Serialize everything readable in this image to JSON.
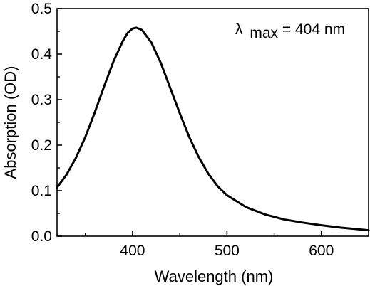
{
  "chart_data": {
    "type": "line",
    "xlabel": "Wavelength (nm)",
    "ylabel": "Absorption (OD)",
    "xlim": [
      320,
      650
    ],
    "ylim": [
      0.0,
      0.5
    ],
    "xticks": [
      400,
      500,
      600
    ],
    "xtick_labels": [
      "400",
      "500",
      "600"
    ],
    "yticks": [
      0.0,
      0.1,
      0.2,
      0.3,
      0.4,
      0.5
    ],
    "ytick_labels": [
      "0.0",
      "0.1",
      "0.2",
      "0.3",
      "0.4",
      "0.5"
    ],
    "grid": false,
    "annotation": {
      "symbol": "λ",
      "subscript": "max",
      "text": "= 404 nm"
    },
    "series": [
      {
        "color": "#000000",
        "x": [
          320,
          330,
          340,
          350,
          360,
          370,
          380,
          390,
          395,
          400,
          404,
          410,
          420,
          430,
          440,
          450,
          460,
          470,
          480,
          490,
          500,
          520,
          540,
          560,
          580,
          600,
          620,
          640,
          650
        ],
        "y": [
          0.107,
          0.135,
          0.172,
          0.218,
          0.272,
          0.33,
          0.385,
          0.43,
          0.447,
          0.456,
          0.458,
          0.453,
          0.425,
          0.38,
          0.325,
          0.27,
          0.218,
          0.174,
          0.138,
          0.11,
          0.09,
          0.064,
          0.048,
          0.037,
          0.03,
          0.024,
          0.019,
          0.015,
          0.013
        ]
      }
    ]
  }
}
